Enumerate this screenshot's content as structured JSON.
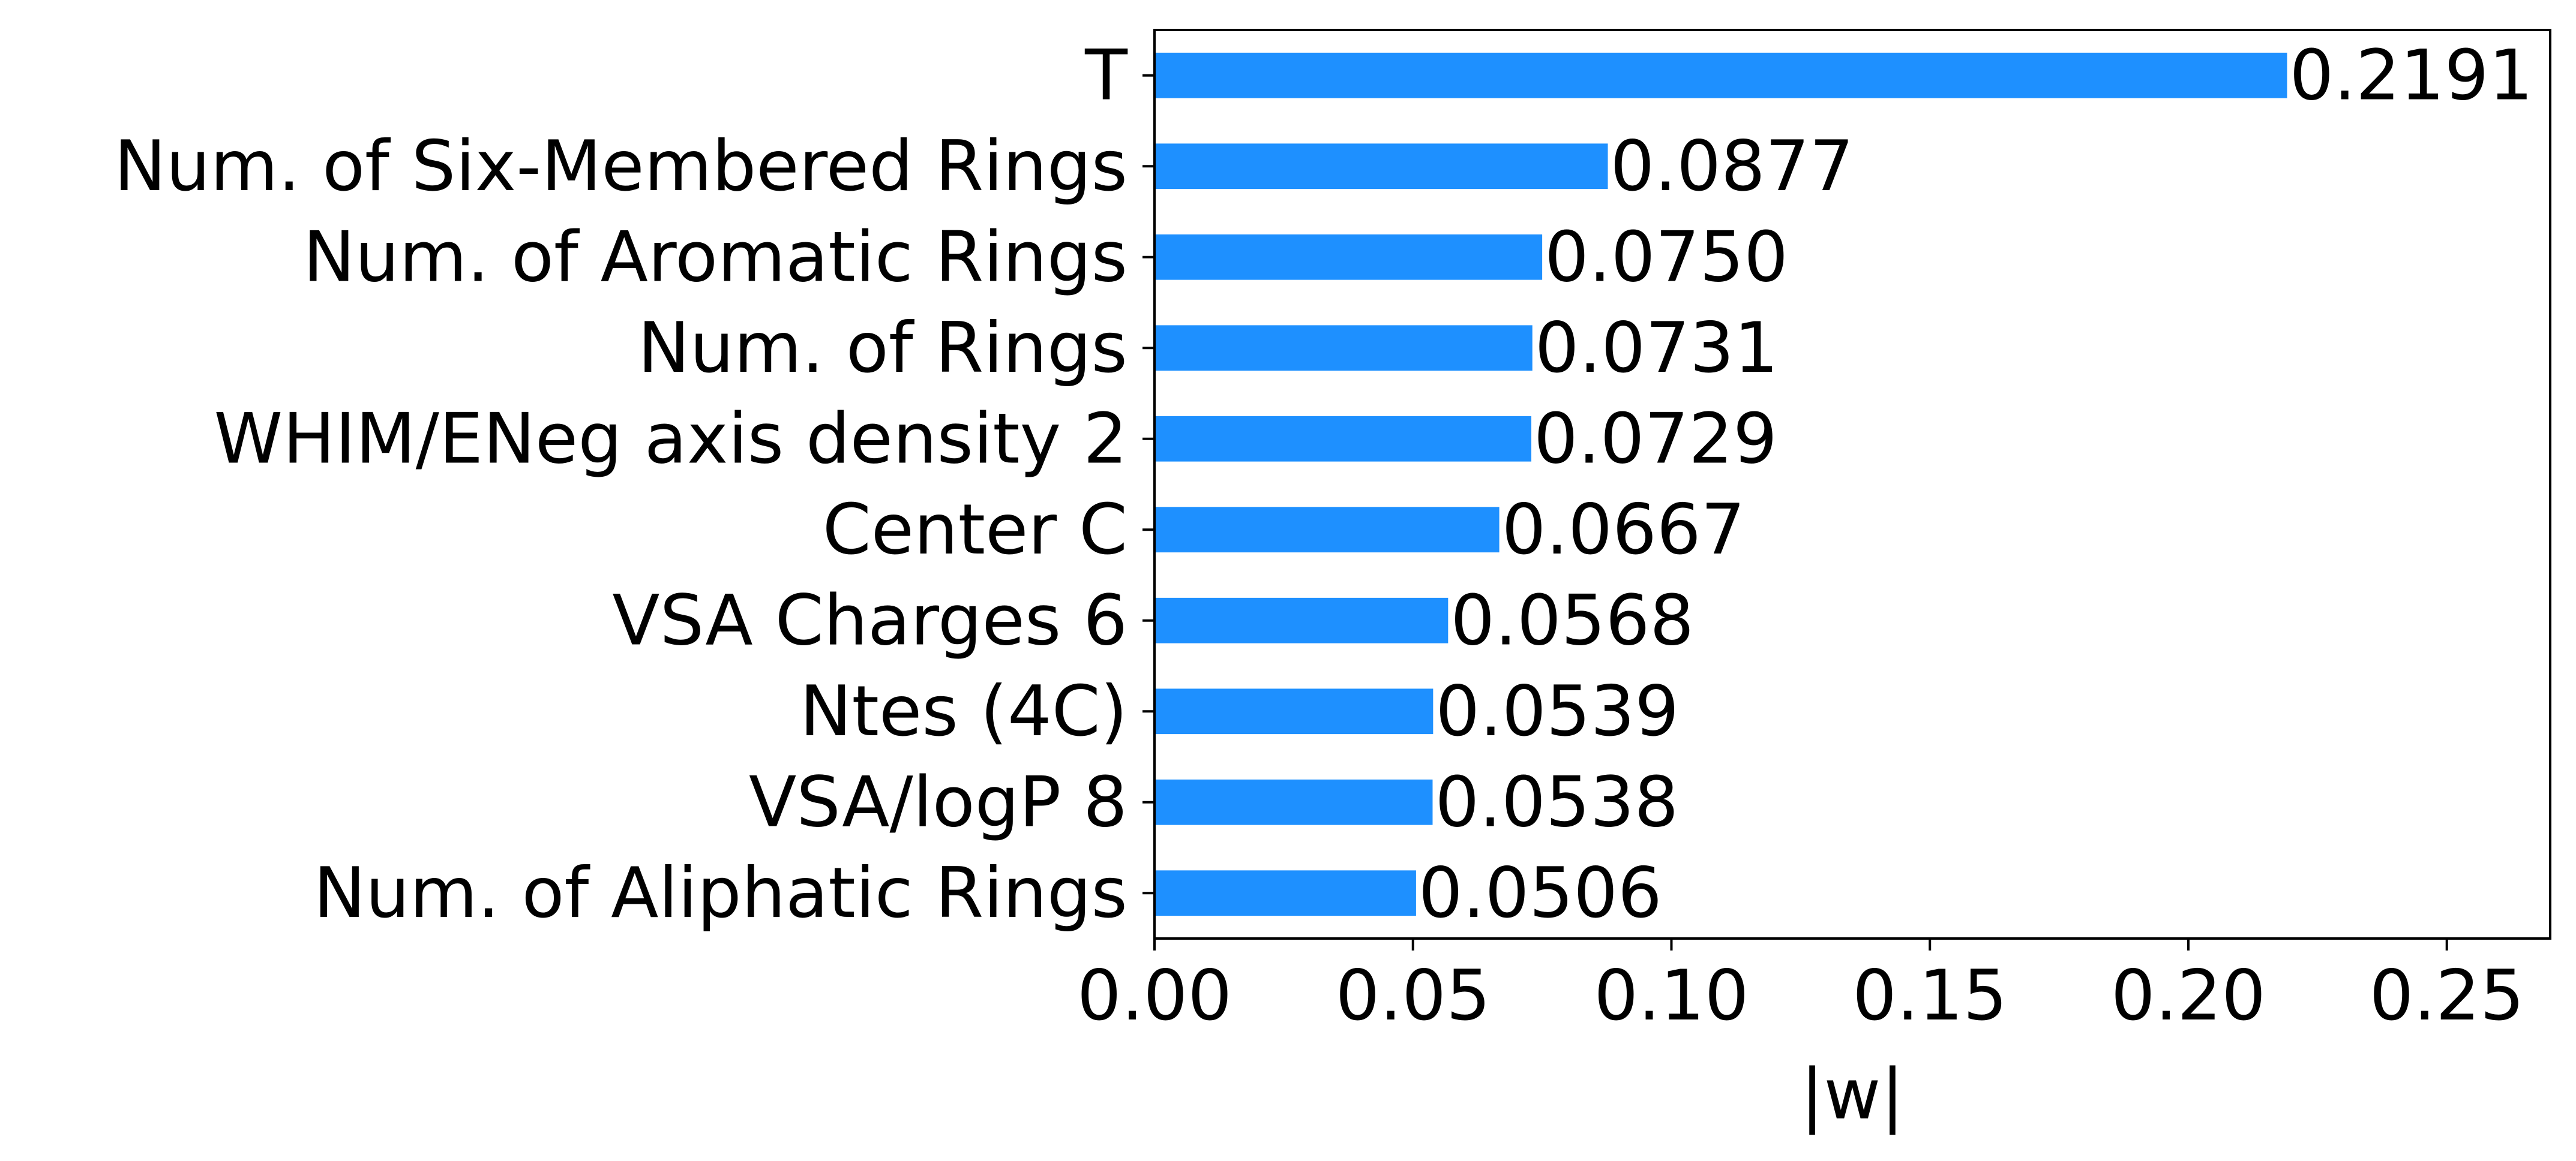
{
  "chart_data": {
    "type": "bar",
    "orientation": "horizontal",
    "categories": [
      "T",
      "Num. of Six-Membered Rings",
      "Num. of Aromatic Rings",
      "Num. of Rings",
      "WHIM/ENeg axis density 2",
      "Center C",
      "VSA Charges 6",
      "Ntes (4C)",
      "VSA/logP 8",
      "Num. of Aliphatic Rings"
    ],
    "values": [
      0.2191,
      0.0877,
      0.075,
      0.0731,
      0.0729,
      0.0667,
      0.0568,
      0.0539,
      0.0538,
      0.0506
    ],
    "data_labels": [
      "0.2191",
      "0.0877",
      "0.0750",
      "0.0731",
      "0.0729",
      "0.0667",
      "0.0568",
      "0.0539",
      "0.0538",
      "0.0506"
    ],
    "title": "",
    "xlabel": "|w|",
    "ylabel": "",
    "xlim": [
      0,
      0.27
    ],
    "xticks": [
      0.0,
      0.05,
      0.1,
      0.15,
      0.2,
      0.25
    ],
    "xtick_labels": [
      "0.00",
      "0.05",
      "0.10",
      "0.15",
      "0.20",
      "0.25"
    ],
    "grid": false,
    "legend": "none",
    "bar_color": "#1e90ff",
    "axis_color": "#000000"
  }
}
